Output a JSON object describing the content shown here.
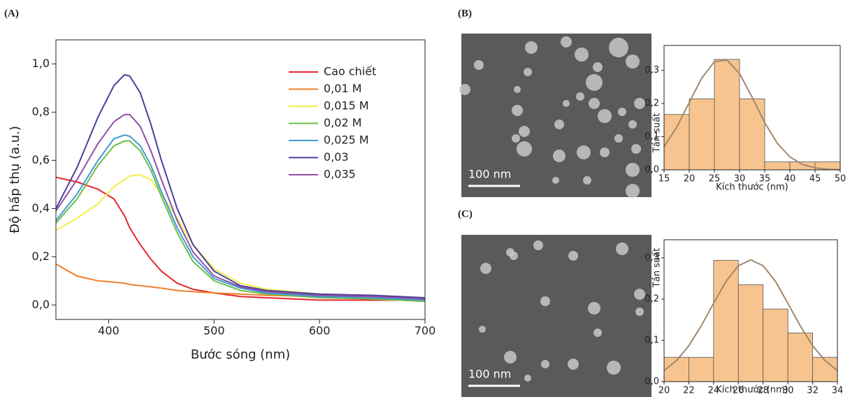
{
  "chart_data": [
    {
      "type": "line",
      "panel": "(A)",
      "x_label": "Bước sóng (nm)",
      "y_label": "Độ hấp thụ (a.u.)",
      "x": [
        350,
        370,
        390,
        405,
        415,
        420,
        430,
        440,
        450,
        465,
        480,
        500,
        525,
        550,
        600,
        650,
        700
      ],
      "series": [
        {
          "name": "Cao chiết",
          "color": "#e8262a",
          "values": [
            0.53,
            0.51,
            0.48,
            0.44,
            0.37,
            0.32,
            0.25,
            0.19,
            0.14,
            0.09,
            0.065,
            0.05,
            0.035,
            0.03,
            0.02,
            0.02,
            0.02
          ]
        },
        {
          "name": "0,01 M",
          "color": "#f07f2a",
          "values": [
            0.17,
            0.12,
            0.1,
            0.095,
            0.09,
            0.085,
            0.08,
            0.075,
            0.07,
            0.06,
            0.055,
            0.05,
            0.045,
            0.04,
            0.035,
            0.03,
            0.025
          ]
        },
        {
          "name": "0,015 M",
          "color": "#f2ef48",
          "values": [
            0.31,
            0.36,
            0.42,
            0.49,
            0.52,
            0.535,
            0.54,
            0.52,
            0.46,
            0.36,
            0.25,
            0.15,
            0.09,
            0.065,
            0.045,
            0.035,
            0.025
          ]
        },
        {
          "name": "0,02 M",
          "color": "#6cbd45",
          "values": [
            0.34,
            0.44,
            0.58,
            0.66,
            0.68,
            0.68,
            0.64,
            0.56,
            0.45,
            0.3,
            0.18,
            0.1,
            0.06,
            0.045,
            0.03,
            0.025,
            0.015
          ]
        },
        {
          "name": "0,025 M",
          "color": "#3f9ad6",
          "values": [
            0.35,
            0.46,
            0.6,
            0.69,
            0.705,
            0.7,
            0.66,
            0.58,
            0.47,
            0.32,
            0.2,
            0.11,
            0.07,
            0.05,
            0.035,
            0.03,
            0.02
          ]
        },
        {
          "name": "0,03",
          "color": "#4b3e9a",
          "values": [
            0.4,
            0.57,
            0.78,
            0.91,
            0.955,
            0.95,
            0.88,
            0.75,
            0.6,
            0.4,
            0.25,
            0.14,
            0.08,
            0.06,
            0.045,
            0.04,
            0.03
          ]
        },
        {
          "name": "0,035",
          "color": "#8f4fa8",
          "values": [
            0.39,
            0.52,
            0.67,
            0.76,
            0.79,
            0.79,
            0.74,
            0.64,
            0.52,
            0.35,
            0.22,
            0.12,
            0.075,
            0.055,
            0.04,
            0.035,
            0.025
          ]
        }
      ],
      "xlim": [
        350,
        700
      ],
      "xticks": [
        400,
        500,
        600,
        700
      ],
      "ylim": [
        -0.06,
        1.1
      ],
      "yticks": [
        {
          "value": 0,
          "label": "0,0"
        },
        {
          "value": 0.2,
          "label": "0,2"
        },
        {
          "value": 0.4,
          "label": "0,4"
        },
        {
          "value": 0.6,
          "label": "0,6"
        },
        {
          "value": 0.8,
          "label": "0,8"
        },
        {
          "value": 1.0,
          "label": "1,0"
        }
      ],
      "legend": "upper right"
    },
    {
      "type": "histogram",
      "panel": "(B)",
      "scale_bar": "100 nm",
      "x_label": "Kích thước (nm)",
      "y_label": "Tần suất",
      "bins": [
        15,
        20,
        25,
        30,
        35,
        40,
        45,
        50
      ],
      "counts": [
        0.167,
        0.214,
        0.333,
        0.214,
        0.024,
        0.024,
        0.024
      ],
      "color": "#f7c48f",
      "fit": {
        "color": "#a08870",
        "x": [
          15,
          17.5,
          20,
          22.5,
          25,
          27.5,
          30,
          32.5,
          35,
          37.5,
          40,
          42.5,
          45,
          47.5,
          50
        ],
        "values": [
          0.07,
          0.128,
          0.203,
          0.277,
          0.326,
          0.331,
          0.29,
          0.219,
          0.142,
          0.08,
          0.039,
          0.016,
          0.006,
          0.002,
          0
        ]
      },
      "xlim": [
        15,
        50
      ],
      "xticks": [
        15,
        20,
        25,
        30,
        35,
        40,
        45,
        50
      ],
      "ylim": [
        0,
        0.375
      ],
      "yticks": [
        {
          "value": 0,
          "label": "0,0"
        },
        {
          "value": 0.1,
          "label": "0,1"
        },
        {
          "value": 0.2,
          "label": "0,2"
        },
        {
          "value": 0.3,
          "label": "0,3"
        }
      ]
    },
    {
      "type": "histogram",
      "panel": "(C)",
      "scale_bar": "100 nm",
      "x_label": "Kích thước (nm)",
      "y_label": "Tần suất",
      "bins": [
        20,
        22,
        24,
        26,
        28,
        30,
        32,
        34
      ],
      "counts": [
        0.059,
        0.059,
        0.294,
        0.235,
        0.176,
        0.118,
        0.059
      ],
      "color": "#f7c48f",
      "fit": {
        "color": "#a08870",
        "x": [
          20,
          21,
          22,
          23,
          24,
          25,
          26,
          27,
          28,
          29,
          30,
          31,
          32,
          33,
          34
        ],
        "values": [
          0.027,
          0.051,
          0.087,
          0.135,
          0.19,
          0.243,
          0.281,
          0.295,
          0.281,
          0.243,
          0.19,
          0.135,
          0.087,
          0.051,
          0.027
        ]
      },
      "xlim": [
        20,
        34
      ],
      "xticks": [
        20,
        22,
        24,
        26,
        28,
        30,
        32,
        34
      ],
      "ylim": [
        0,
        0.344
      ],
      "yticks": [
        {
          "value": 0,
          "label": "0,0"
        },
        {
          "value": 0.1,
          "label": "0,1"
        },
        {
          "value": 0.2,
          "label": "0,2"
        },
        {
          "value": 0.3,
          "label": "0,3"
        }
      ]
    }
  ]
}
